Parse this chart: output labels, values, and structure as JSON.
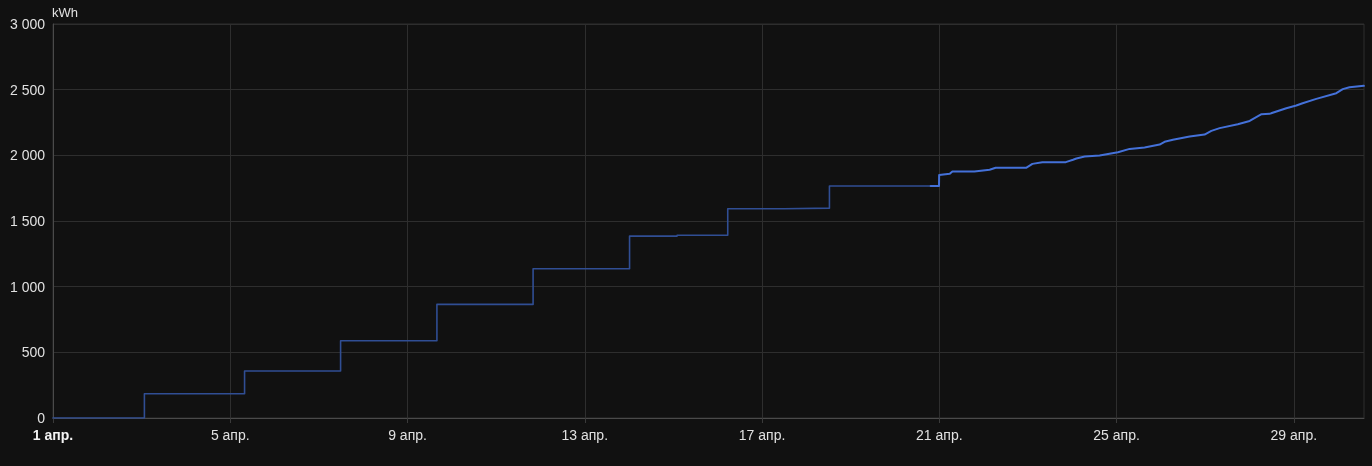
{
  "chart_data": {
    "type": "step",
    "ylabel": "kWh",
    "xlim": [
      "--04-01",
      "--04-30T14:00"
    ],
    "ylim": [
      0,
      3000
    ],
    "xticks": [
      {
        "value": "--04-01",
        "label": "1 апр."
      },
      {
        "value": "--04-05",
        "label": "5 апр."
      },
      {
        "value": "--04-09",
        "label": "9 апр."
      },
      {
        "value": "--04-13",
        "label": "13 апр."
      },
      {
        "value": "--04-17",
        "label": "17 апр."
      },
      {
        "value": "--04-21",
        "label": "21 апр."
      },
      {
        "value": "--04-25",
        "label": "25 апр."
      },
      {
        "value": "--04-29",
        "label": "29 апр."
      }
    ],
    "yticks": [
      0,
      500,
      {
        "value": 1000,
        "label": "1 000"
      },
      {
        "value": 1500,
        "label": "1 500"
      },
      {
        "value": 2000,
        "label": "2 000"
      },
      {
        "value": 2500,
        "label": "2 500"
      },
      {
        "value": 3000,
        "label": "3 000"
      }
    ],
    "grid": true,
    "series": [
      {
        "color": "#304e94",
        "x": [
          "--04-01T00:00",
          "--04-03T01:30",
          "--04-05T07:45",
          "--04-07T11:45",
          "--04-09T15:55",
          "--04-11T20:00",
          "--04-14T00:15",
          "--04-15T02:00",
          "--04-16T05:25",
          "--04-17T12:00",
          "--04-18T12:30",
          "--04-20T19:20"
        ],
        "values": [
          0,
          185,
          358,
          588,
          865,
          1136,
          1385,
          1392,
          1593,
          1598,
          1766,
          1766
        ]
      },
      {
        "type": "line",
        "color": "#4471d9",
        "x": [
          "--04-20T19:20",
          "--04-20T23:50",
          "--04-20T23:55",
          "--04-21T05:40",
          "--04-21T07:05",
          "--04-21T19:00",
          "--04-22T03:15",
          "--04-22T06:30",
          "--04-22T23:00",
          "--04-23T02:25",
          "--04-23T07:50",
          "--04-23T20:30",
          "--04-24T00:25",
          "--04-24T02:15",
          "--04-24T06:45",
          "--04-24T14:50",
          "--04-25T00:45",
          "--04-25T07:05",
          "--04-25T15:10",
          "--04-25T23:20",
          "--04-26T02:00",
          "--04-26T06:30",
          "--04-26T15:35",
          "--04-26T23:40",
          "--04-27T03:20",
          "--04-27T07:50",
          "--04-27T17:40",
          "--04-28T00:05",
          "--04-28T06:30",
          "--04-28T10:50",
          "--04-28T19:55",
          "--04-29T01:20",
          "--04-29T04:45",
          "--04-29T12:10",
          "--04-29T23:00",
          "--04-30T02:30",
          "--04-30T06:10",
          "--04-30T13:55"
        ],
        "values": [
          1766,
          1766,
          1851,
          1859,
          1877,
          1877,
          1890,
          1905,
          1905,
          1935,
          1948,
          1948,
          1966,
          1976,
          1991,
          1998,
          2024,
          2049,
          2059,
          2082,
          2103,
          2118,
          2143,
          2158,
          2186,
          2207,
          2237,
          2262,
          2313,
          2316,
          2359,
          2379,
          2397,
          2430,
          2473,
          2504,
          2519,
          2529
        ]
      }
    ]
  }
}
